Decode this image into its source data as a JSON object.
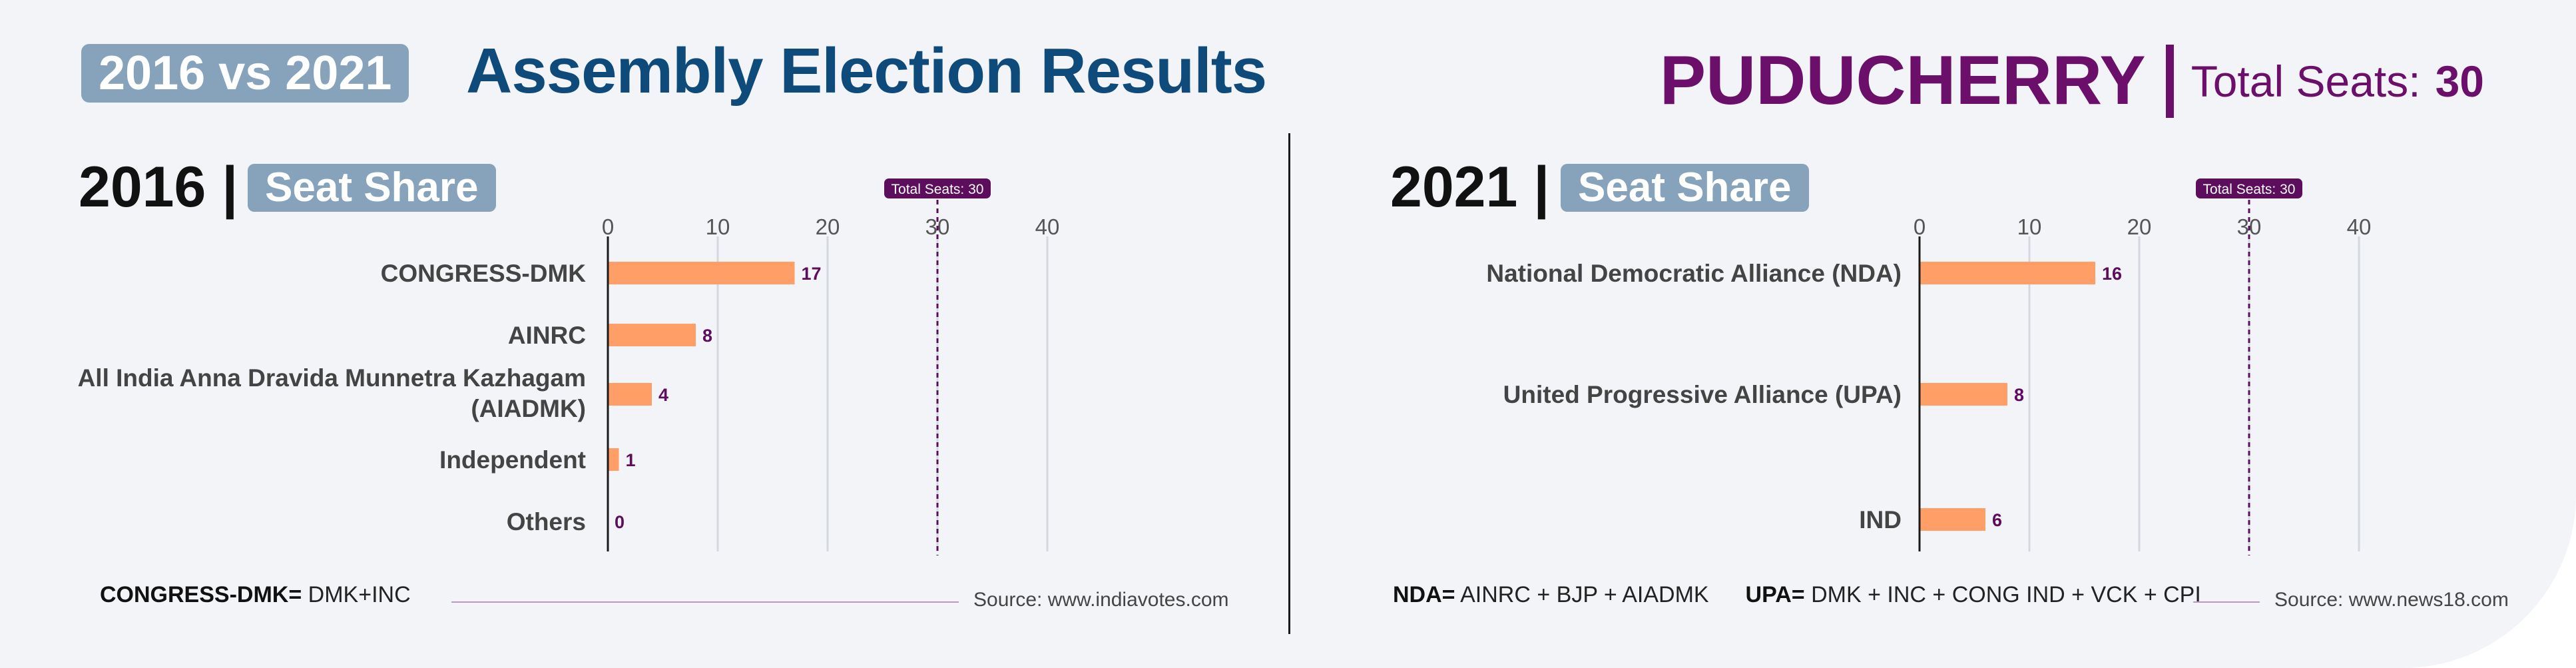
{
  "header": {
    "badge": "2016 vs 2021",
    "title": "Assembly Election Results",
    "state": "PUDUCHERRY",
    "separator": "|",
    "total_label": "Total Seats:",
    "total_value": "30"
  },
  "colors": {
    "bar": "#ff9e66",
    "value_label": "#5c0e5c",
    "marker": "#5c0e5c",
    "grid": "#d4d8de",
    "badge": "#86a3bb",
    "title": "#0e4a7a",
    "state": "#6b0f6b"
  },
  "sections": [
    {
      "year": "2016",
      "separator": "|",
      "badge": "Seat Share",
      "footnote": {
        "key": "CONGRESS-DMK=",
        "text": "DMK+INC"
      },
      "source": "Source: www.indiavotes.com"
    },
    {
      "year": "2021",
      "separator": "|",
      "badge": "Seat Share",
      "footnote": {
        "key": "NDA=",
        "text": "AINRC + BJP + AIADMK",
        "key2": "UPA=",
        "text2": "DMK + INC + CONG IND + VCK + CPI"
      },
      "source": "Source: www.news18.com"
    }
  ],
  "chart_data": [
    {
      "type": "bar",
      "orientation": "horizontal",
      "categories": [
        "CONGRESS-DMK",
        "AINRC",
        "All India Anna Dravida Munnetra Kazhagam (AIADMK)",
        "Independent",
        "Others"
      ],
      "values": [
        17,
        8,
        4,
        1,
        0
      ],
      "xlim": [
        0,
        40
      ],
      "xticks": [
        0,
        10,
        20,
        30,
        40
      ],
      "reference_line": {
        "value": 30,
        "label": "Total Seats: 30"
      },
      "grid": true
    },
    {
      "type": "bar",
      "orientation": "horizontal",
      "categories": [
        "National Democratic Alliance (NDA)",
        "United Progressive Alliance (UPA)",
        "IND"
      ],
      "values": [
        16,
        8,
        6
      ],
      "xlim": [
        0,
        40
      ],
      "xticks": [
        0,
        10,
        20,
        30,
        40
      ],
      "reference_line": {
        "value": 30,
        "label": "Total Seats: 30"
      },
      "grid": true
    }
  ]
}
